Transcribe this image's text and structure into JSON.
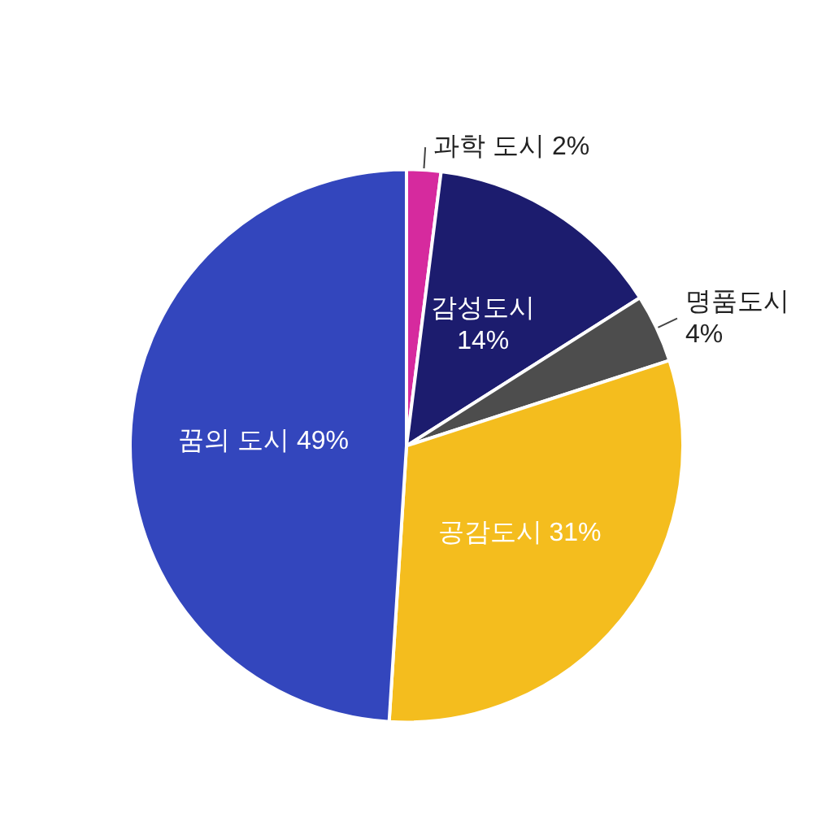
{
  "chart_data": {
    "type": "pie",
    "categories": [
      "과학 도시",
      "감성도시",
      "명품도시",
      "공감도시",
      "꿈의 도시"
    ],
    "values": [
      2,
      14,
      4,
      31,
      49
    ],
    "value_labels": [
      "2%",
      "14%",
      "4%",
      "31%",
      "49%"
    ],
    "colors": [
      "#d62a9e",
      "#1c1c6e",
      "#4d4d4d",
      "#f4bd1e",
      "#3346bd"
    ],
    "legend": false
  }
}
